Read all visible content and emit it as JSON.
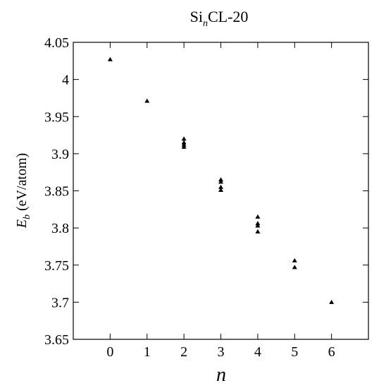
{
  "chart_data": {
    "type": "scatter",
    "title": {
      "prefix": "Si",
      "subscript": "n",
      "suffix": "CL-20"
    },
    "xlabel": "n",
    "ylabel": {
      "symbol": "E",
      "subscript": "b",
      "unit": " (eV/atom)"
    },
    "xlim": [
      -1,
      7
    ],
    "ylim": [
      3.65,
      4.05
    ],
    "xticks": [
      0,
      1,
      2,
      3,
      4,
      5,
      6
    ],
    "xtick_labels": [
      "0",
      "1",
      "2",
      "3",
      "4",
      "5",
      "6"
    ],
    "yticks": [
      3.65,
      3.7,
      3.75,
      3.8,
      3.85,
      3.9,
      3.95,
      4.0,
      4.05
    ],
    "ytick_labels": [
      "3.65",
      "3.7",
      "3.75",
      "3.8",
      "3.85",
      "3.9",
      "3.95",
      "4",
      "4.05"
    ],
    "grid": false,
    "marker": "filled-triangle",
    "marker_color": "#000000",
    "points": [
      {
        "x": 0,
        "y": 4.027
      },
      {
        "x": 1,
        "y": 3.971
      },
      {
        "x": 2,
        "y": 3.92
      },
      {
        "x": 2,
        "y": 3.915
      },
      {
        "x": 2,
        "y": 3.912
      },
      {
        "x": 2,
        "y": 3.909
      },
      {
        "x": 3,
        "y": 3.865
      },
      {
        "x": 3,
        "y": 3.862
      },
      {
        "x": 3,
        "y": 3.855
      },
      {
        "x": 3,
        "y": 3.851
      },
      {
        "x": 4,
        "y": 3.815
      },
      {
        "x": 4,
        "y": 3.806
      },
      {
        "x": 4,
        "y": 3.803
      },
      {
        "x": 4,
        "y": 3.795
      },
      {
        "x": 5,
        "y": 3.756
      },
      {
        "x": 5,
        "y": 3.747
      },
      {
        "x": 6,
        "y": 3.7
      }
    ]
  }
}
